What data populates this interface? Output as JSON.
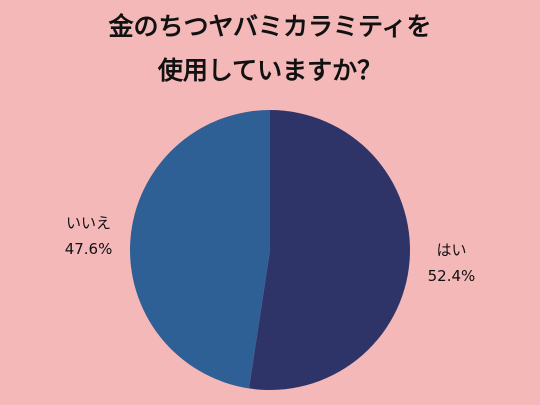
{
  "chart_data": {
    "type": "pie",
    "title": [
      "金のちつヤバミカラミティを",
      "使用していますか？"
    ],
    "categories": [
      "はい",
      "いいえ"
    ],
    "values": [
      52.4,
      47.6
    ],
    "value_labels": [
      "52.4%",
      "47.6%"
    ],
    "colors": [
      "#2f3468",
      "#2e5f95"
    ]
  }
}
